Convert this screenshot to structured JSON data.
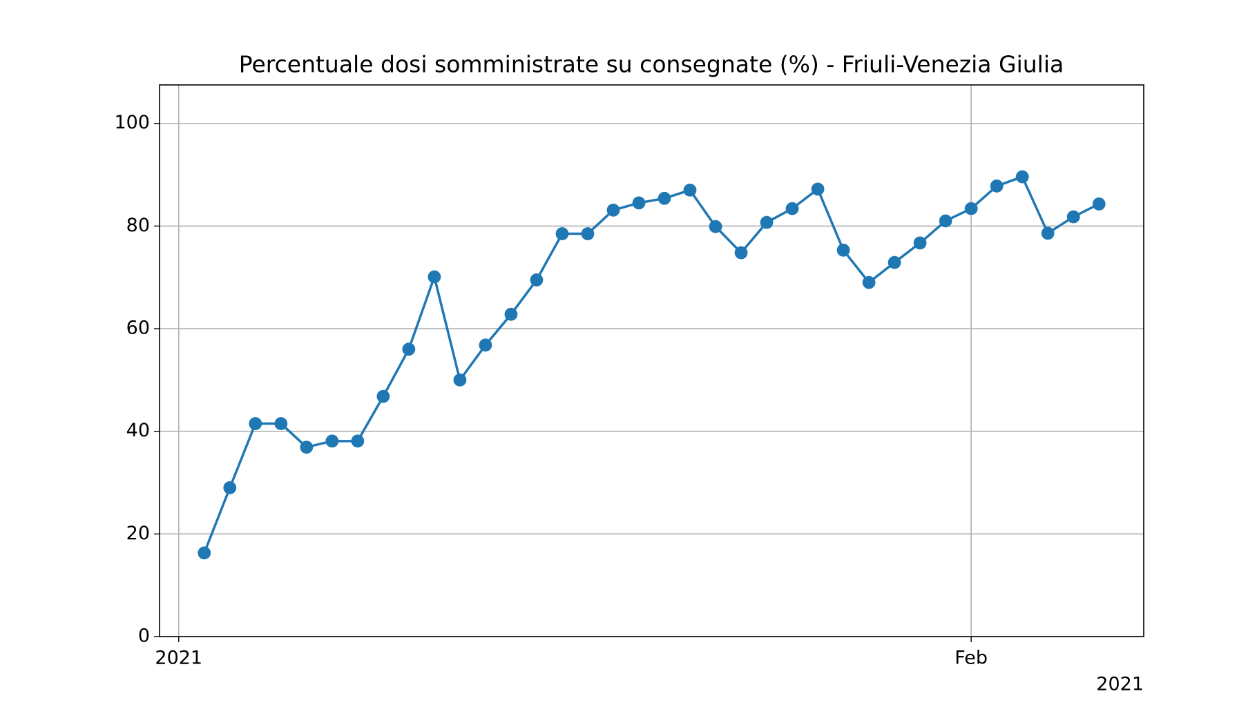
{
  "chart_data": {
    "type": "line",
    "title": "Percentuale dosi somministrate su consegnate (%) - Friuli-Venezia Giulia",
    "x": [
      "2021-01-02",
      "2021-01-03",
      "2021-01-04",
      "2021-01-05",
      "2021-01-06",
      "2021-01-07",
      "2021-01-08",
      "2021-01-09",
      "2021-01-10",
      "2021-01-11",
      "2021-01-12",
      "2021-01-13",
      "2021-01-14",
      "2021-01-15",
      "2021-01-16",
      "2021-01-17",
      "2021-01-18",
      "2021-01-19",
      "2021-01-20",
      "2021-01-21",
      "2021-01-22",
      "2021-01-23",
      "2021-01-24",
      "2021-01-25",
      "2021-01-26",
      "2021-01-27",
      "2021-01-28",
      "2021-01-29",
      "2021-01-30",
      "2021-01-31",
      "2021-02-01",
      "2021-02-02",
      "2021-02-03",
      "2021-02-04",
      "2021-02-05",
      "2021-02-06"
    ],
    "series": [
      {
        "name": "Friuli-Venezia Giulia",
        "color": "#1f77b4",
        "values": [
          16.3,
          29.0,
          41.5,
          41.5,
          36.9,
          38.1,
          38.1,
          46.8,
          56.0,
          70.1,
          50.0,
          56.8,
          62.8,
          69.5,
          78.5,
          78.5,
          83.1,
          84.5,
          85.4,
          87.0,
          79.9,
          74.8,
          80.7,
          83.4,
          87.2,
          75.3,
          69.0,
          72.9,
          76.7,
          81.0,
          83.4,
          87.8,
          89.6,
          78.6,
          81.8,
          84.3
        ]
      }
    ],
    "xlim": [
      "2020-12-31T06:00",
      "2021-02-07T18:00"
    ],
    "xticks": [
      {
        "value": "2021-01-01",
        "label": "2021"
      },
      {
        "value": "2021-02-01",
        "label": "Feb"
      }
    ],
    "x_offset_label": "2021",
    "ylim": [
      0,
      107.5
    ],
    "yticks": [
      0,
      20,
      40,
      60,
      80,
      100
    ],
    "grid": true
  }
}
